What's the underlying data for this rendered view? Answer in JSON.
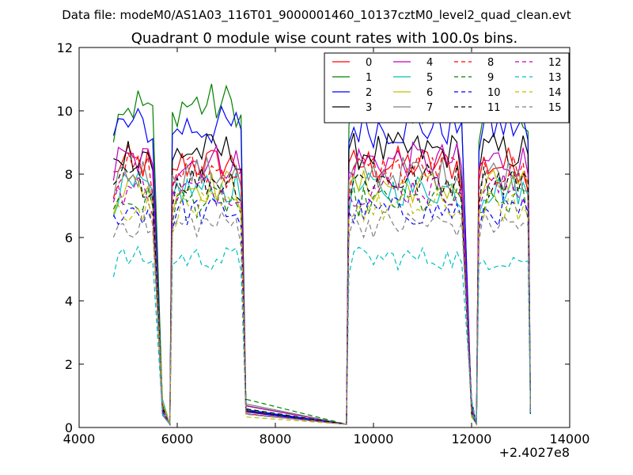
{
  "chart_data": {
    "type": "line",
    "suptitle": "Data file: modeM0/AS1A03_116T01_9000001460_10137cztM0_level2_quad_clean.evt",
    "title": "Quadrant 0 module wise count rates with 100.0s bins.",
    "xlabel": "",
    "ylabel": "",
    "x_offset_label": "+2.4027e8",
    "xlim": [
      4000,
      14000
    ],
    "ylim": [
      0,
      12
    ],
    "xticks": [
      4000,
      6000,
      8000,
      10000,
      12000,
      14000
    ],
    "yticks": [
      0,
      2,
      4,
      6,
      8,
      10,
      12
    ],
    "grid": false,
    "legend_position": "top-right",
    "legend_columns": 4,
    "segments": [
      {
        "start": 4700,
        "end": 5500,
        "drop_to": 5700
      },
      {
        "start": 5900,
        "end": 7300,
        "drop_to": 7400
      },
      {
        "start": 9500,
        "end": 11800,
        "drop_to": 12000
      },
      {
        "start": 12150,
        "end": 13150,
        "drop_to": 13200
      }
    ],
    "series": [
      {
        "name": "0",
        "color": "#ff0000",
        "dash": "solid",
        "base": 8.4
      },
      {
        "name": "1",
        "color": "#008000",
        "dash": "solid",
        "base": 10.3
      },
      {
        "name": "2",
        "color": "#0000ff",
        "dash": "solid",
        "base": 9.6
      },
      {
        "name": "3",
        "color": "#000000",
        "dash": "solid",
        "base": 8.8
      },
      {
        "name": "4",
        "color": "#bf00bf",
        "dash": "solid",
        "base": 8.5
      },
      {
        "name": "5",
        "color": "#00bfbf",
        "dash": "solid",
        "base": 7.6
      },
      {
        "name": "6",
        "color": "#bfbf00",
        "dash": "solid",
        "base": 7.7
      },
      {
        "name": "7",
        "color": "#808080",
        "dash": "solid",
        "base": 8.1
      },
      {
        "name": "8",
        "color": "#ff0000",
        "dash": "dashed",
        "base": 8.2
      },
      {
        "name": "9",
        "color": "#008000",
        "dash": "dashed",
        "base": 7.2
      },
      {
        "name": "10",
        "color": "#0000ff",
        "dash": "dashed",
        "base": 6.9
      },
      {
        "name": "11",
        "color": "#000000",
        "dash": "dashed",
        "base": 7.9
      },
      {
        "name": "12",
        "color": "#bf00bf",
        "dash": "dashed",
        "base": 7.6
      },
      {
        "name": "13",
        "color": "#00bfbf",
        "dash": "dashed",
        "base": 5.4
      },
      {
        "name": "14",
        "color": "#bfbf00",
        "dash": "dashed",
        "base": 7.0
      },
      {
        "name": "15",
        "color": "#808080",
        "dash": "dashed",
        "base": 6.5
      }
    ]
  }
}
